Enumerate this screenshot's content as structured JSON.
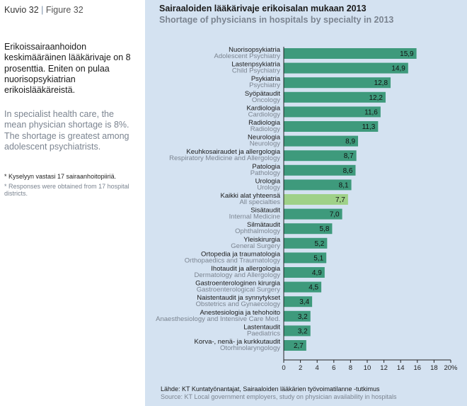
{
  "figure": {
    "label_fi": "Kuvio 32",
    "separator": " | ",
    "label_en": "Figure 32"
  },
  "description": {
    "fi": "Erikoissairaanhoidon keskimääräinen lääkärivaje on 8 prosenttia. Eniten on pulaa nuorisopsykiatrian erikoislääkäreistä.",
    "en": "In specialist health care, the mean physician shortage is 8%. The shortage is greatest among adolescent psychiatrists."
  },
  "notes": {
    "fi": "* Kyselyyn vastasi 17 sairaanhoitopiiriä.",
    "en": "* Responses were obtained from 17 hospital districts."
  },
  "source": {
    "fi": "Lähde:   KT Kuntatyönantajat, Sairaaloiden lääkärien työvoimatilanne -tutkimus",
    "en": "Source:  KT Local government employers, study on physician availability in hospitals"
  },
  "colors": {
    "panel": "#d4e2f1",
    "bar": "#3e9a7c",
    "bar_highlight": "#9fd188",
    "label_fi": "#1a1a1a",
    "label_en": "#7b8490"
  },
  "chart_data": {
    "type": "bar",
    "orientation": "horizontal",
    "title": "Sairaaloiden lääkärivaje erikoisalan mukaan 2013",
    "subtitle": "Shortage of physicians in hospitals by specialty in 2013",
    "xlim": [
      0,
      20
    ],
    "x_ticks": [
      "0",
      "2",
      "4",
      "6",
      "8",
      "10",
      "12",
      "14",
      "16",
      "18",
      "20%"
    ],
    "categories": [
      {
        "fi": "Nuorisopsykiatria",
        "en": "Adolescent Psychiatry",
        "value": 15.9,
        "label": "15,9"
      },
      {
        "fi": "Lastenpsykiatria",
        "en": "Child Psychiatry",
        "value": 14.9,
        "label": "14,9"
      },
      {
        "fi": "Psykiatria",
        "en": "Psychiatry",
        "value": 12.8,
        "label": "12,8"
      },
      {
        "fi": "Syöpätaudit",
        "en": "Oncology",
        "value": 12.2,
        "label": "12,2"
      },
      {
        "fi": "Kardiologia",
        "en": "Cardiology",
        "value": 11.6,
        "label": "11,6"
      },
      {
        "fi": "Radiologia",
        "en": "Radiology",
        "value": 11.3,
        "label": "11,3"
      },
      {
        "fi": "Neurologia",
        "en": "Neurology",
        "value": 8.9,
        "label": "8,9"
      },
      {
        "fi": "Keuhkosairaudet ja allergologia",
        "en": "Respiratory Medicine and Allergology",
        "value": 8.7,
        "label": "8,7"
      },
      {
        "fi": "Patologia",
        "en": "Pathology",
        "value": 8.6,
        "label": "8,6"
      },
      {
        "fi": "Urologia",
        "en": "Urology",
        "value": 8.1,
        "label": "8,1"
      },
      {
        "fi": "Kaikki alat yhteensä",
        "en": "All specialties",
        "value": 7.7,
        "label": "7,7",
        "highlight": true
      },
      {
        "fi": "Sisätaudit",
        "en": "Internal Medicine",
        "value": 7.0,
        "label": "7,0"
      },
      {
        "fi": "Silmätaudit",
        "en": "Ophthalmology",
        "value": 5.8,
        "label": "5,8"
      },
      {
        "fi": "Yleiskirurgia",
        "en": "General Surgery",
        "value": 5.2,
        "label": "5,2"
      },
      {
        "fi": "Ortopedia ja traumatologia",
        "en": "Orthopaedics and Traumatology",
        "value": 5.1,
        "label": "5,1"
      },
      {
        "fi": "Ihotaudit ja allergologia",
        "en": "Dermatology and Allergology",
        "value": 4.9,
        "label": "4,9"
      },
      {
        "fi": "Gastroenterologinen kirurgia",
        "en": "Gastroenterological Surgery",
        "value": 4.5,
        "label": "4,5"
      },
      {
        "fi": "Naistentaudit ja synnytykset",
        "en": "Obstetrics and Gynaecology",
        "value": 3.4,
        "label": "3,4"
      },
      {
        "fi": "Anestesiologia ja tehohoito",
        "en": "Anaesthesiology and Intensive Care Med.",
        "value": 3.2,
        "label": "3,2"
      },
      {
        "fi": "Lastentaudit",
        "en": "Paediatrics",
        "value": 3.2,
        "label": "3,2"
      },
      {
        "fi": "Korva-, nenä- ja kurkkutaudit",
        "en": "Otorhinolaryngology",
        "value": 2.7,
        "label": "2,7"
      }
    ],
    "grid": false,
    "legend": "none"
  }
}
